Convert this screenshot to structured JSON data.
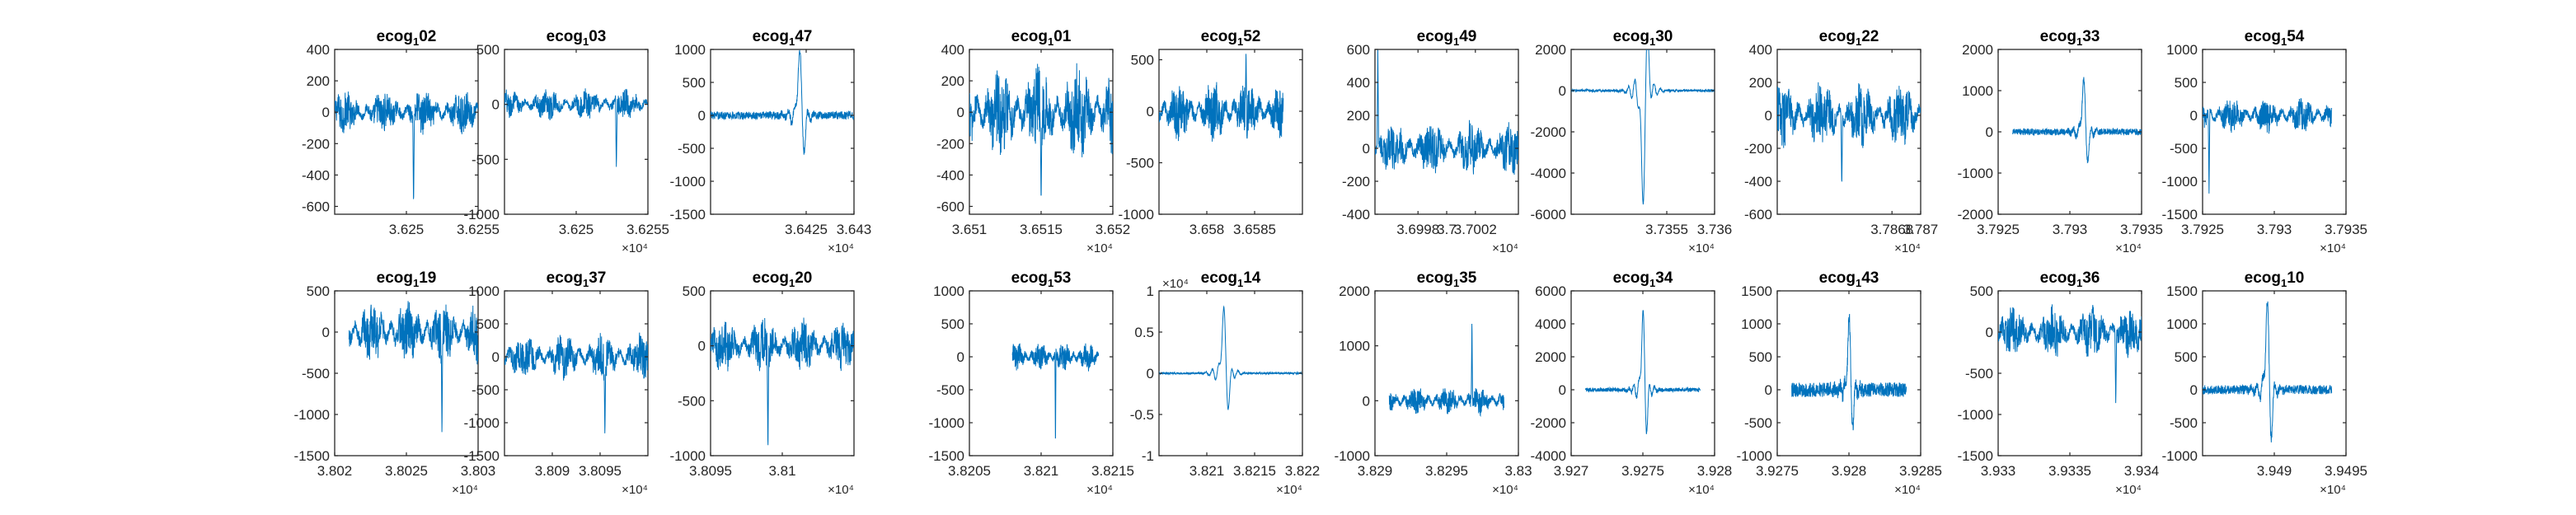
{
  "figure": {
    "rows": 2,
    "cols": 10,
    "trace_color": "#0072BD",
    "axis_color": "#262626"
  },
  "chart_data": [
    {
      "type": "line",
      "title_base": "ecog",
      "title_sub": "1",
      "title_suffix": "02",
      "xlim": [
        36245,
        36255
      ],
      "ylim": [
        -650,
        400
      ],
      "xticks": [
        36250,
        36255
      ],
      "xtick_labels": [
        "3.625",
        "3.6255"
      ],
      "yticks": [
        -600,
        -400,
        -200,
        0,
        200,
        400
      ],
      "ytick_labels": [
        "-600",
        "-400",
        "-200",
        "0",
        "200",
        "400"
      ],
      "x_exponent": "",
      "signal": {
        "kind": "noise",
        "amp": 120,
        "spike_at": 0.55,
        "spike": -620,
        "x_from": 36245,
        "x_to": 36255
      }
    },
    {
      "type": "line",
      "title_base": "ecog",
      "title_sub": "1",
      "title_suffix": "03",
      "xlim": [
        36245,
        36255
      ],
      "ylim": [
        -1000,
        500
      ],
      "xticks": [
        36250,
        36255
      ],
      "xtick_labels": [
        "3.625",
        "3.6255"
      ],
      "yticks": [
        -1000,
        -500,
        0,
        500
      ],
      "ytick_labels": [
        "-1000",
        "-500",
        "0",
        "500"
      ],
      "x_exponent": "×10⁴",
      "signal": {
        "kind": "noise",
        "amp": 120,
        "spike_at": 0.78,
        "spike": -600,
        "x_from": 36245,
        "x_to": 36255
      }
    },
    {
      "type": "line",
      "title_base": "ecog",
      "title_sub": "1",
      "title_suffix": "47",
      "xlim": [
        36415,
        36430
      ],
      "ylim": [
        -1500,
        1000
      ],
      "xticks": [
        36425,
        36430
      ],
      "xtick_labels": [
        "3.6425",
        "3.643"
      ],
      "yticks": [
        -1500,
        -1000,
        -500,
        0,
        500,
        1000
      ],
      "ytick_labels": [
        "-1500",
        "-1000",
        "-500",
        "0",
        "500",
        "1000"
      ],
      "x_exponent": "×10⁴",
      "signal": {
        "kind": "burst",
        "amp": 60,
        "spike_at": 0.62,
        "spike": 1000,
        "x_from": 36415,
        "x_to": 36430
      }
    },
    {
      "type": "line",
      "title_base": "ecog",
      "title_sub": "1",
      "title_suffix": "01",
      "xlim": [
        36510,
        36520
      ],
      "ylim": [
        -650,
        400
      ],
      "xticks": [
        36510,
        36515,
        36520
      ],
      "xtick_labels": [
        "3.651",
        "3.6515",
        "3.652"
      ],
      "yticks": [
        -600,
        -400,
        -200,
        0,
        200,
        400
      ],
      "ytick_labels": [
        "-600",
        "-400",
        "-200",
        "0",
        "200",
        "400"
      ],
      "x_exponent": "×10⁴",
      "signal": {
        "kind": "noise",
        "amp": 260,
        "spike_at": 0.5,
        "spike": -600,
        "x_from": 36510,
        "x_to": 36520
      }
    },
    {
      "type": "line",
      "title_base": "ecog",
      "title_sub": "1",
      "title_suffix": "52",
      "xlim": [
        36575,
        36590
      ],
      "ylim": [
        -1000,
        600
      ],
      "xticks": [
        36580,
        36585
      ],
      "xtick_labels": [
        "3.658",
        "3.6585"
      ],
      "yticks": [
        -1000,
        -500,
        0,
        500
      ],
      "ytick_labels": [
        "-1000",
        "-500",
        "0",
        "500"
      ],
      "x_exponent": "",
      "signal": {
        "kind": "noise",
        "amp": 250,
        "spike_at": 0.7,
        "spike": 600,
        "x_from": 36575,
        "x_to": 36588
      }
    },
    {
      "type": "line",
      "title_base": "ecog",
      "title_sub": "1",
      "title_suffix": "49",
      "xlim": [
        36995,
        37005
      ],
      "ylim": [
        -400,
        600
      ],
      "xticks": [
        36998,
        37000,
        37002
      ],
      "xtick_labels": [
        "3.6998",
        "3.7",
        "3.7002"
      ],
      "yticks": [
        -400,
        -200,
        0,
        200,
        400,
        600
      ],
      "ytick_labels": [
        "-400",
        "-200",
        "0",
        "200",
        "400",
        "600"
      ],
      "x_exponent": "×10⁴",
      "signal": {
        "kind": "noise",
        "amp": 140,
        "spike_at": 0.02,
        "spike": 600,
        "x_from": 36995,
        "x_to": 37005
      }
    },
    {
      "type": "line",
      "title_base": "ecog",
      "title_sub": "1",
      "title_suffix": "30",
      "xlim": [
        37345,
        37360
      ],
      "ylim": [
        -6000,
        2000
      ],
      "xticks": [
        37355,
        37360
      ],
      "xtick_labels": [
        "3.7355",
        "3.736"
      ],
      "yticks": [
        -6000,
        -4000,
        -2000,
        0,
        2000
      ],
      "ytick_labels": [
        "-6000",
        "-4000",
        "-2000",
        "0",
        "2000"
      ],
      "x_exponent": "×10⁴",
      "signal": {
        "kind": "burst",
        "amp": 60,
        "spike_at": 0.5,
        "spike": -5500,
        "x_from": 37345,
        "x_to": 37360
      }
    },
    {
      "type": "line",
      "title_base": "ecog",
      "title_sub": "1",
      "title_suffix": "22",
      "xlim": [
        37860,
        37870
      ],
      "ylim": [
        -600,
        400
      ],
      "xticks": [
        37868,
        37870
      ],
      "xtick_labels": [
        "3.7868",
        "3.787"
      ],
      "yticks": [
        -600,
        -400,
        -200,
        0,
        200,
        400
      ],
      "ytick_labels": [
        "-600",
        "-400",
        "-200",
        "0",
        "200",
        "400"
      ],
      "x_exponent": "×10⁴",
      "signal": {
        "kind": "noise",
        "amp": 170,
        "spike_at": 0.45,
        "spike": -450,
        "x_from": 37860,
        "x_to": 37870
      }
    },
    {
      "type": "line",
      "title_base": "ecog",
      "title_sub": "1",
      "title_suffix": "33",
      "xlim": [
        37925,
        37935
      ],
      "ylim": [
        -2000,
        2000
      ],
      "xticks": [
        37925,
        37930,
        37935
      ],
      "xtick_labels": [
        "3.7925",
        "3.793",
        "3.7935"
      ],
      "yticks": [
        -2000,
        -1000,
        0,
        1000,
        2000
      ],
      "ytick_labels": [
        "-2000",
        "-1000",
        "0",
        "1000",
        "2000"
      ],
      "x_exponent": "×10⁴",
      "signal": {
        "kind": "burst",
        "amp": 80,
        "spike_at": 0.55,
        "spike": 1300,
        "x_from": 37926,
        "x_to": 37935
      }
    },
    {
      "type": "line",
      "title_base": "ecog",
      "title_sub": "1",
      "title_suffix": "54",
      "xlim": [
        37925,
        37935
      ],
      "ylim": [
        -1500,
        1000
      ],
      "xticks": [
        37925,
        37930,
        37935
      ],
      "xtick_labels": [
        "3.7925",
        "3.793",
        "3.7935"
      ],
      "yticks": [
        -1500,
        -1000,
        -500,
        0,
        500,
        1000
      ],
      "ytick_labels": [
        "-1500",
        "-1000",
        "-500",
        "0",
        "500",
        "1000"
      ],
      "x_exponent": "×10⁴",
      "signal": {
        "kind": "noise",
        "amp": 230,
        "spike_at": 0.05,
        "spike": -1200,
        "x_from": 37925,
        "x_to": 37934
      }
    },
    {
      "type": "line",
      "title_base": "ecog",
      "title_sub": "1",
      "title_suffix": "19",
      "xlim": [
        38020,
        38030
      ],
      "ylim": [
        -1500,
        500
      ],
      "xticks": [
        38020,
        38025,
        38030
      ],
      "xtick_labels": [
        "3.802",
        "3.8025",
        "3.803"
      ],
      "yticks": [
        -1500,
        -1000,
        -500,
        0,
        500
      ],
      "ytick_labels": [
        "-1500",
        "-1000",
        "-500",
        "0",
        "500"
      ],
      "x_exponent": "×10⁴",
      "signal": {
        "kind": "noise",
        "amp": 320,
        "spike_at": 0.72,
        "spike": -1300,
        "x_from": 38021,
        "x_to": 38030
      }
    },
    {
      "type": "line",
      "title_base": "ecog",
      "title_sub": "1",
      "title_suffix": "37",
      "xlim": [
        38085,
        38100
      ],
      "ylim": [
        -1500,
        1000
      ],
      "xticks": [
        38090,
        38095
      ],
      "xtick_labels": [
        "3.809",
        "3.8095"
      ],
      "yticks": [
        -1500,
        -1000,
        -500,
        0,
        500,
        1000
      ],
      "ytick_labels": [
        "-1500",
        "-1000",
        "-500",
        "0",
        "500",
        "1000"
      ],
      "x_exponent": "×10⁴",
      "signal": {
        "kind": "noise",
        "amp": 300,
        "spike_at": 0.7,
        "spike": -1250,
        "x_from": 38085,
        "x_to": 38100
      }
    },
    {
      "type": "line",
      "title_base": "ecog",
      "title_sub": "1",
      "title_suffix": "20",
      "xlim": [
        38095,
        38105
      ],
      "ylim": [
        -1000,
        500
      ],
      "xticks": [
        38095,
        38100
      ],
      "xtick_labels": [
        "3.8095",
        "3.81"
      ],
      "yticks": [
        -1000,
        -500,
        0,
        500
      ],
      "ytick_labels": [
        "-1000",
        "-500",
        "0",
        "500"
      ],
      "x_exponent": "×10⁴",
      "signal": {
        "kind": "noise",
        "amp": 210,
        "spike_at": 0.4,
        "spike": -1000,
        "x_from": 38095,
        "x_to": 38105
      }
    },
    {
      "type": "line",
      "title_base": "ecog",
      "title_sub": "1",
      "title_suffix": "53",
      "xlim": [
        38205,
        38215
      ],
      "ylim": [
        -1500,
        1000
      ],
      "xticks": [
        38205,
        38210,
        38215
      ],
      "xtick_labels": [
        "3.8205",
        "3.821",
        "3.8215"
      ],
      "yticks": [
        -1500,
        -1000,
        -500,
        0,
        500,
        1000
      ],
      "ytick_labels": [
        "-1500",
        "-1000",
        "-500",
        "0",
        "500",
        "1000"
      ],
      "x_exponent": "×10⁴",
      "signal": {
        "kind": "noise",
        "amp": 180,
        "spike_at": 0.5,
        "spike": -1400,
        "x_from": 38208,
        "x_to": 38214
      }
    },
    {
      "type": "line",
      "title_base": "ecog",
      "title_sub": "1",
      "title_suffix": "14",
      "xlim": [
        38205,
        38220
      ],
      "ylim": [
        -1,
        1
      ],
      "xticks": [
        38210,
        38215,
        38220
      ],
      "xtick_labels": [
        "3.821",
        "3.8215",
        "3.822"
      ],
      "yticks": [
        -1,
        -0.5,
        0,
        0.5,
        1
      ],
      "ytick_labels": [
        "-1",
        "-0.5",
        "0",
        "0.5",
        "1"
      ],
      "x_exponent": "×10⁴",
      "y_exponent": "×10⁴",
      "signal": {
        "kind": "burst",
        "amp": 0.01,
        "spike_at": 0.45,
        "spike": 0.8,
        "x_from": 38205,
        "x_to": 38220
      }
    },
    {
      "type": "line",
      "title_base": "ecog",
      "title_sub": "1",
      "title_suffix": "35",
      "xlim": [
        38290,
        38300
      ],
      "ylim": [
        -1000,
        2000
      ],
      "xticks": [
        38290,
        38295,
        38300
      ],
      "xtick_labels": [
        "3.829",
        "3.8295",
        "3.83"
      ],
      "yticks": [
        -1000,
        0,
        1000,
        2000
      ],
      "ytick_labels": [
        "-1000",
        "0",
        "1000",
        "2000"
      ],
      "x_exponent": "×10⁴",
      "signal": {
        "kind": "noise",
        "amp": 220,
        "spike_at": 0.72,
        "spike": 1500,
        "x_from": 38291,
        "x_to": 38299
      }
    },
    {
      "type": "line",
      "title_base": "ecog",
      "title_sub": "1",
      "title_suffix": "34",
      "xlim": [
        39270,
        39280
      ],
      "ylim": [
        -4000,
        6000
      ],
      "xticks": [
        39270,
        39275,
        39280
      ],
      "xtick_labels": [
        "3.927",
        "3.9275",
        "3.928"
      ],
      "yticks": [
        -4000,
        -2000,
        0,
        2000,
        4000,
        6000
      ],
      "ytick_labels": [
        "-4000",
        "-2000",
        "0",
        "2000",
        "4000",
        "6000"
      ],
      "x_exponent": "×10⁴",
      "signal": {
        "kind": "burst",
        "amp": 120,
        "spike_at": 0.5,
        "spike": 4800,
        "x_from": 39271,
        "x_to": 39279
      }
    },
    {
      "type": "line",
      "title_base": "ecog",
      "title_sub": "1",
      "title_suffix": "43",
      "xlim": [
        39275,
        39285
      ],
      "ylim": [
        -1000,
        1500
      ],
      "xticks": [
        39275,
        39280,
        39285
      ],
      "xtick_labels": [
        "3.9275",
        "3.928",
        "3.9285"
      ],
      "yticks": [
        -1000,
        -500,
        0,
        500,
        1000,
        1500
      ],
      "ytick_labels": [
        "-1000",
        "-500",
        "0",
        "500",
        "1000",
        "1500"
      ],
      "x_exponent": "×10⁴",
      "signal": {
        "kind": "burst",
        "amp": 110,
        "spike_at": 0.5,
        "spike": 1100,
        "x_from": 39276,
        "x_to": 39284
      }
    },
    {
      "type": "line",
      "title_base": "ecog",
      "title_sub": "1",
      "title_suffix": "36",
      "xlim": [
        39330,
        39340
      ],
      "ylim": [
        -1500,
        500
      ],
      "xticks": [
        39330,
        39335,
        39340
      ],
      "xtick_labels": [
        "3.933",
        "3.9335",
        "3.934"
      ],
      "yticks": [
        -1500,
        -1000,
        -500,
        0,
        500
      ],
      "ytick_labels": [
        "-1500",
        "-1000",
        "-500",
        "0",
        "500"
      ],
      "x_exponent": "×10⁴",
      "signal": {
        "kind": "noise",
        "amp": 270,
        "spike_at": 0.82,
        "spike": -900,
        "x_from": 39330,
        "x_to": 39340
      }
    },
    {
      "type": "line",
      "title_base": "ecog",
      "title_sub": "1",
      "title_suffix": "10",
      "xlim": [
        39485,
        39495
      ],
      "ylim": [
        -1000,
        1500
      ],
      "xticks": [
        39490,
        39495
      ],
      "xtick_labels": [
        "3.949",
        "3.9495"
      ],
      "yticks": [
        -1000,
        -500,
        0,
        500,
        1000,
        1500
      ],
      "ytick_labels": [
        "-1000",
        "-500",
        "0",
        "500",
        "1000",
        "1500"
      ],
      "x_exponent": "×10⁴",
      "signal": {
        "kind": "burst",
        "amp": 70,
        "spike_at": 0.5,
        "spike": 1350,
        "x_from": 39485,
        "x_to": 39494
      }
    }
  ]
}
